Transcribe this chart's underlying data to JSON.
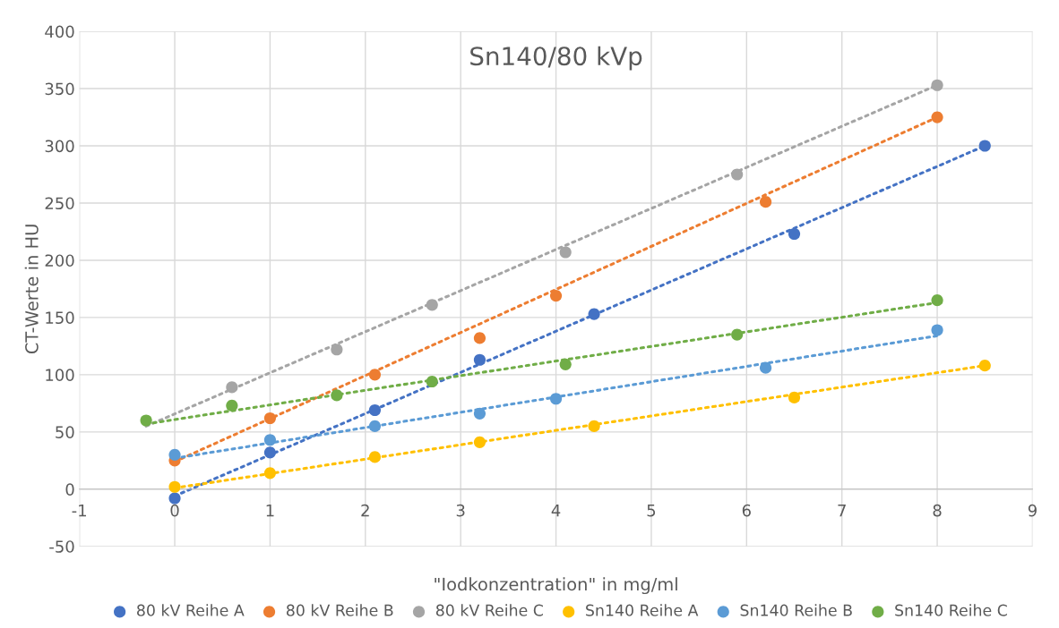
{
  "chart_data": {
    "type": "scatter",
    "title": "Sn140/80 kVp",
    "xlabel": "\"Iodkonzentration\" in mg/ml",
    "ylabel": "CT-Werte in HU",
    "xlim": [
      -1,
      9
    ],
    "xticks": [
      -1,
      0,
      1,
      2,
      3,
      4,
      5,
      6,
      7,
      8,
      9
    ],
    "ylim": [
      -50,
      400
    ],
    "yticks": [
      -50,
      0,
      50,
      100,
      150,
      200,
      250,
      300,
      350,
      400
    ],
    "grid": true,
    "legend": "bottom",
    "marker": "circle",
    "series": [
      {
        "name": "80 kV Reihe A",
        "color": "#4472c4",
        "x": [
          0,
          1,
          2.1,
          3.2,
          4.4,
          6.5,
          8.5
        ],
        "values": [
          -8,
          32,
          69,
          113,
          153,
          223,
          300
        ]
      },
      {
        "name": "80 kV Reihe B",
        "color": "#ed7d31",
        "x": [
          0,
          1,
          2.1,
          3.2,
          4,
          6.2,
          8
        ],
        "values": [
          25,
          62,
          100,
          132,
          169,
          251,
          325
        ]
      },
      {
        "name": "80 kV Reihe C",
        "color": "#a5a5a5",
        "x": [
          0.6,
          1.7,
          2.7,
          4.1,
          5.9,
          8
        ],
        "values": [
          89,
          122,
          161,
          207,
          275,
          353
        ]
      },
      {
        "name": "Sn140 Reihe A",
        "color": "#ffc000",
        "x": [
          0,
          1,
          2.1,
          3.2,
          4.4,
          6.5,
          8.5
        ],
        "values": [
          2,
          14,
          28,
          41,
          55,
          80,
          108
        ]
      },
      {
        "name": "Sn140 Reihe B",
        "color": "#5b9bd5",
        "x": [
          0,
          1,
          2.1,
          3.2,
          4,
          6.2,
          8
        ],
        "values": [
          30,
          43,
          55,
          66,
          79,
          106,
          139
        ]
      },
      {
        "name": "Sn140 Reihe C",
        "color": "#70ad47",
        "x": [
          -0.3,
          0.6,
          1.7,
          2.7,
          4.1,
          5.9,
          8
        ],
        "values": [
          60,
          73,
          82,
          94,
          109,
          135,
          165
        ]
      },
      {
        "type": "line",
        "marker": "none",
        "line_style": "dotted",
        "color": "#4472c4",
        "x": [
          0,
          8.5
        ],
        "values": [
          -6,
          300
        ]
      },
      {
        "type": "line",
        "marker": "none",
        "line_style": "dotted",
        "color": "#ed7d31",
        "x": [
          0,
          8
        ],
        "values": [
          24,
          325
        ]
      },
      {
        "type": "line",
        "marker": "none",
        "line_style": "dotted",
        "color": "#a5a5a5",
        "x": [
          -0.3,
          8
        ],
        "values": [
          55,
          353
        ]
      },
      {
        "type": "line",
        "marker": "none",
        "line_style": "dotted",
        "color": "#ffc000",
        "x": [
          0,
          8.5
        ],
        "values": [
          1,
          108
        ]
      },
      {
        "type": "line",
        "marker": "none",
        "line_style": "dotted",
        "color": "#5b9bd5",
        "x": [
          0,
          8
        ],
        "values": [
          27,
          134
        ]
      },
      {
        "type": "line",
        "marker": "none",
        "line_style": "dotted",
        "color": "#70ad47",
        "x": [
          -0.3,
          8
        ],
        "values": [
          57,
          163
        ]
      }
    ]
  }
}
